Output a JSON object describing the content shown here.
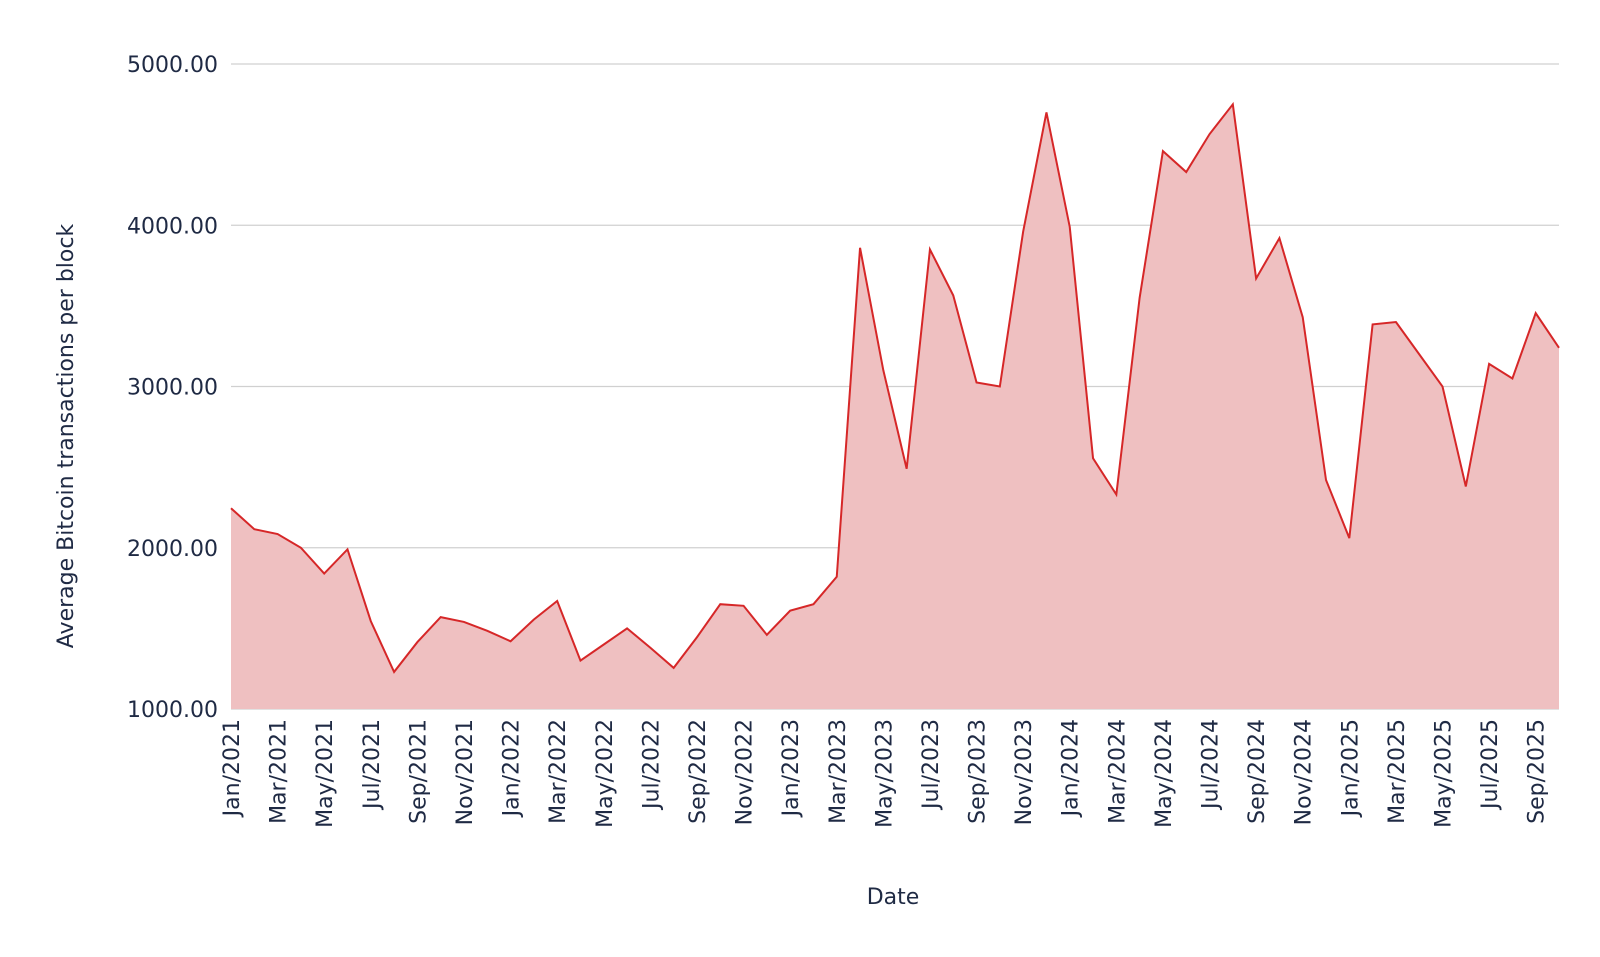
{
  "chart_data": {
    "type": "area",
    "xlabel": "Date",
    "ylabel": "Average Bitcoin transactions per block",
    "ylim": [
      1000,
      5000
    ],
    "grid": true,
    "line_color": "#d62728",
    "fill_color": "#efc0c1",
    "grid_color": "#d0d0d0",
    "text_color": "#1f2a44",
    "y_ticks": [
      "1000.00",
      "2000.00",
      "3000.00",
      "4000.00",
      "5000.00"
    ],
    "y_tick_values": [
      1000,
      2000,
      3000,
      4000,
      5000
    ],
    "x_tick_labels": [
      "Jan/2021",
      "Mar/2021",
      "May/2021",
      "Jul/2021",
      "Sep/2021",
      "Nov/2021",
      "Jan/2022",
      "Mar/2022",
      "May/2022",
      "Jul/2022",
      "Sep/2022",
      "Nov/2022",
      "Jan/2023",
      "Mar/2023",
      "May/2023",
      "Jul/2023",
      "Sep/2023",
      "Nov/2023",
      "Jan/2024",
      "Mar/2024",
      "May/2024",
      "Jul/2024",
      "Sep/2024",
      "Nov/2024",
      "Jan/2025",
      "Mar/2025",
      "May/2025",
      "Jul/2025",
      "Sep/2025"
    ],
    "series": [
      {
        "x": [
          "Jan/2021",
          "Feb/2021",
          "Mar/2021",
          "Apr/2021",
          "May/2021",
          "Jun/2021",
          "Jul/2021",
          "Aug/2021",
          "Sep/2021",
          "Oct/2021",
          "Nov/2021",
          "Dec/2021",
          "Jan/2022",
          "Feb/2022",
          "Mar/2022",
          "Apr/2022",
          "May/2022",
          "Jun/2022",
          "Jul/2022",
          "Aug/2022",
          "Sep/2022",
          "Oct/2022",
          "Nov/2022",
          "Dec/2022",
          "Jan/2023",
          "Feb/2023",
          "Mar/2023",
          "Apr/2023",
          "May/2023",
          "Jun/2023",
          "Jul/2023",
          "Aug/2023",
          "Sep/2023",
          "Oct/2023",
          "Nov/2023",
          "Dec/2023",
          "Jan/2024",
          "Feb/2024",
          "Mar/2024",
          "Apr/2024",
          "May/2024",
          "Jun/2024",
          "Jul/2024",
          "Aug/2024",
          "Sep/2024",
          "Oct/2024",
          "Nov/2024",
          "Dec/2024",
          "Jan/2025",
          "Feb/2025",
          "Mar/2025",
          "Apr/2025",
          "May/2025",
          "Jun/2025",
          "Jul/2025",
          "Aug/2025",
          "Sep/2025",
          "Oct/2025"
        ],
        "values": [
          2245,
          2115,
          2085,
          2000,
          1840,
          1990,
          1545,
          1230,
          1415,
          1570,
          1540,
          1485,
          1420,
          1555,
          1670,
          1300,
          1400,
          1500,
          1380,
          1255,
          1445,
          1650,
          1640,
          1460,
          1610,
          1650,
          1820,
          3860,
          3100,
          2490,
          3850,
          3565,
          3025,
          3000,
          3960,
          4700,
          3990,
          2555,
          2330,
          3550,
          4460,
          4330,
          4565,
          4750,
          3670,
          3920,
          3430,
          2420,
          2060,
          3385,
          3400,
          3200,
          3000,
          2380,
          3140,
          3050,
          3455,
          3240
        ]
      }
    ]
  }
}
